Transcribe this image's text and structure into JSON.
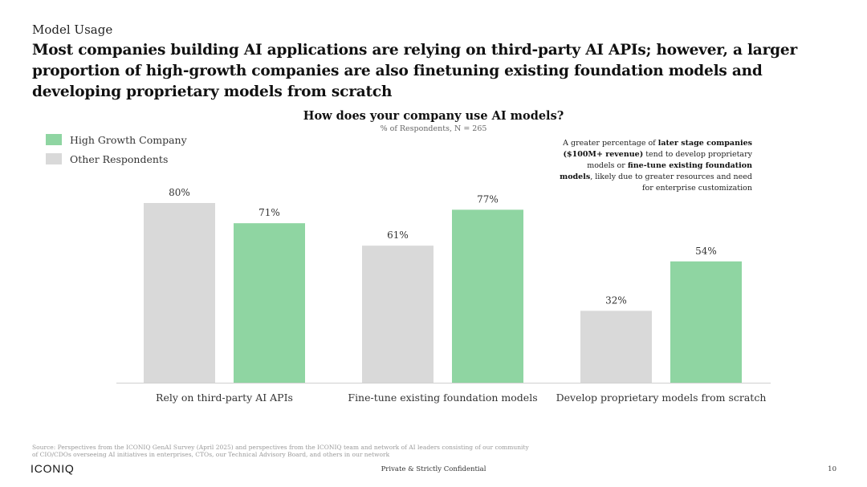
{
  "slide": {
    "kicker": "Model Usage",
    "headline": "Most companies building AI applications are relying on third-party AI APIs; however, a larger proportion of high-growth companies are also finetuning existing foundation models and developing proprietary models from scratch"
  },
  "annotation": {
    "part1": "A greater percentage of ",
    "bold1": "later stage companies ($100M+ revenue)",
    "part2": " tend to develop proprietary models or ",
    "bold2": "fine-tune existing foundation models",
    "part3": ", likely due to greater resources and need for enterprise customization"
  },
  "footer": {
    "source": "Source: Perspectives from the ICONIQ GenAI Survey (April 2025) and perspectives from the ICONIQ team and network of AI leaders consisting of our community of CIO/CDOs overseeing AI initiatives in enterprises, CTOs, our Technical Advisory Board, and others in our network",
    "logo": "ICONIQ",
    "confidential": "Private & Strictly Confidential",
    "page_number": "10"
  },
  "chart_data": {
    "type": "bar",
    "title": "How does your company use AI models?",
    "subtitle": "% of Respondents, N = 265",
    "categories": [
      "Rely on third-party AI APIs",
      "Fine-tune existing foundation models",
      "Develop proprietary models from scratch"
    ],
    "series": [
      {
        "name": "Other Respondents",
        "values": [
          80,
          61,
          32
        ],
        "labels": [
          "80%",
          "61%",
          "32%"
        ],
        "color": "#d9d9d9"
      },
      {
        "name": "High Growth Company",
        "values": [
          71,
          77,
          54
        ],
        "labels": [
          "71%",
          "77%",
          "54%"
        ],
        "color": "#8fd5a2"
      }
    ],
    "legend_order": [
      "High Growth Company",
      "Other Respondents"
    ],
    "legend_position": "top-left",
    "ylim": [
      0,
      100
    ],
    "grid": false,
    "baseline_color": "#d0d0d0"
  }
}
